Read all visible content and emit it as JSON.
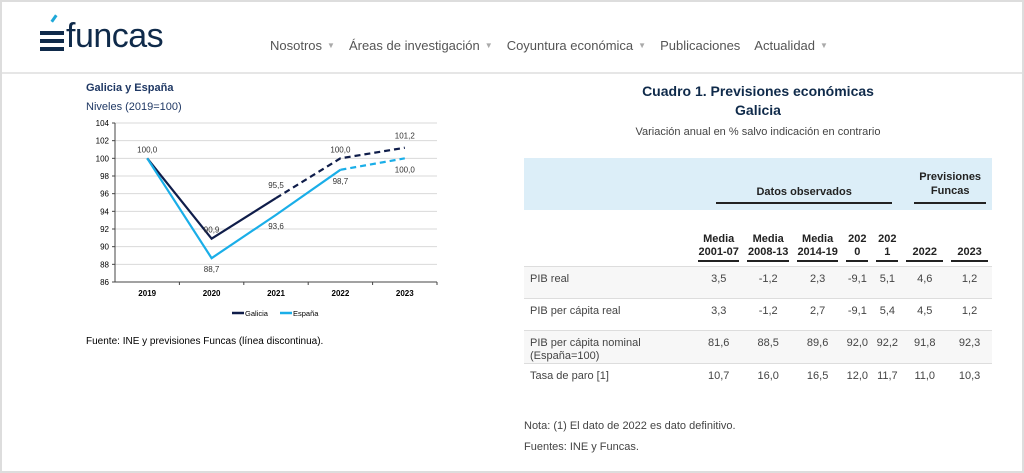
{
  "header": {
    "logo": "funcas",
    "nav": [
      {
        "label": "Nosotros",
        "dropdown": true
      },
      {
        "label": "Áreas de investigación",
        "dropdown": true
      },
      {
        "label": "Coyuntura económica",
        "dropdown": true
      },
      {
        "label": "Publicaciones",
        "dropdown": false
      },
      {
        "label": "Actualidad",
        "dropdown": true
      }
    ]
  },
  "chart_data": {
    "type": "line",
    "title": "Galicia y España",
    "subtitle": "Niveles (2019=100)",
    "categories": [
      "2019",
      "2020",
      "2021",
      "2022",
      "2023"
    ],
    "ylim": [
      86,
      104
    ],
    "yticks": [
      86,
      88,
      90,
      92,
      94,
      96,
      98,
      100,
      102,
      104
    ],
    "series": [
      {
        "name": "Galicia",
        "color": "#0f1d4a",
        "values": [
          100.0,
          90.9,
          95.5,
          100.0,
          101.2
        ],
        "labels": [
          "100,0",
          "90,9",
          "95,5",
          "100,0",
          "101,2"
        ],
        "forecast_from": "2021"
      },
      {
        "name": "España",
        "color": "#1aaee8",
        "values": [
          100.0,
          88.7,
          93.6,
          98.7,
          100.0
        ],
        "labels": [
          "",
          "88,7",
          "93,6",
          "98,7",
          "100,0"
        ],
        "forecast_from": "2022"
      }
    ],
    "legend": "bottom",
    "source": "Fuente: INE y previsiones Funcas (línea discontinua)."
  },
  "table": {
    "title1": "Cuadro 1. Previsiones económicas",
    "title2": "Galicia",
    "subtitle": "Variación anual en % salvo indicación en contrario",
    "group_observed": "Datos observados",
    "group_forecast": "Previsiones Funcas",
    "columns": [
      "Media 2001-07",
      "Media 2008-13",
      "Media 2014-19",
      "2020",
      "2021",
      "2022",
      "2023"
    ],
    "rows": [
      {
        "label": "PIB real",
        "values": [
          "3,5",
          "-1,2",
          "2,3",
          "-9,1",
          "5,1",
          "4,6",
          "1,2"
        ]
      },
      {
        "label": "PIB per cápita real",
        "values": [
          "3,3",
          "-1,2",
          "2,7",
          "-9,1",
          "5,4",
          "4,5",
          "1,2"
        ]
      },
      {
        "label": "PIB per cápita nominal (España=100)",
        "values": [
          "81,6",
          "88,5",
          "89,6",
          "92,0",
          "92,2",
          "91,8",
          "92,3"
        ]
      },
      {
        "label": "Tasa de paro [1]",
        "values": [
          "10,7",
          "16,0",
          "16,5",
          "12,0",
          "11,7",
          "11,0",
          "10,3"
        ]
      }
    ],
    "note": "Nota: (1) El dato de 2022 es dato definitivo.",
    "sources": "Fuentes: INE y Funcas."
  }
}
